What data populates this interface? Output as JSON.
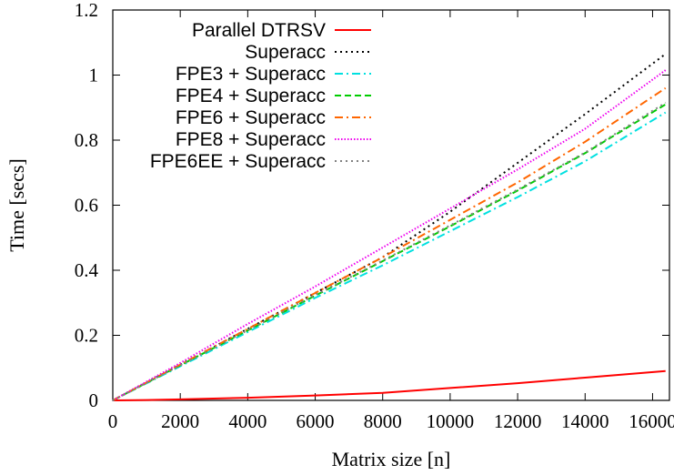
{
  "chart_data": {
    "type": "line",
    "xlabel": "Matrix size [n]",
    "ylabel": "Time [secs]",
    "xlim": [
      0,
      16500
    ],
    "ylim": [
      0,
      1.2
    ],
    "xticks": [
      0,
      2000,
      4000,
      6000,
      8000,
      10000,
      12000,
      14000,
      16000
    ],
    "yticks": [
      0,
      0.2,
      0.4,
      0.6,
      0.8,
      1,
      1.2
    ],
    "xtick_labels": [
      "0",
      "2000",
      "4000",
      "6000",
      "8000",
      "10000",
      "12000",
      "14000",
      "16000"
    ],
    "ytick_labels": [
      "0",
      "0.2",
      "0.4",
      "0.6",
      "0.8",
      "1",
      "1.2"
    ],
    "legend_position": "top-left",
    "grid": false,
    "series": [
      {
        "name": "Parallel DTRSV",
        "color": "#ff0000",
        "dash": "solid",
        "x": [
          0,
          1000,
          2000,
          4000,
          6000,
          8000,
          10000,
          12000,
          14000,
          16384
        ],
        "y": [
          0,
          0.001,
          0.003,
          0.008,
          0.015,
          0.023,
          0.038,
          0.053,
          0.07,
          0.09
        ]
      },
      {
        "name": "Superacc",
        "color": "#000000",
        "dash": "dot",
        "x": [
          0,
          2000,
          4000,
          6000,
          8000,
          10000,
          12000,
          14000,
          16384
        ],
        "y": [
          0,
          0.11,
          0.22,
          0.33,
          0.44,
          0.58,
          0.73,
          0.88,
          1.065
        ]
      },
      {
        "name": "FPE3 + Superacc",
        "color": "#00e0e0",
        "dash": "dashdot",
        "x": [
          0,
          2000,
          4000,
          6000,
          8000,
          10000,
          12000,
          14000,
          16384
        ],
        "y": [
          0,
          0.105,
          0.21,
          0.315,
          0.415,
          0.52,
          0.625,
          0.735,
          0.885
        ]
      },
      {
        "name": "FPE4 + Superacc",
        "color": "#00cc00",
        "dash": "dash",
        "x": [
          0,
          2000,
          4000,
          6000,
          8000,
          10000,
          12000,
          14000,
          16384
        ],
        "y": [
          0,
          0.108,
          0.215,
          0.322,
          0.428,
          0.535,
          0.645,
          0.76,
          0.91
        ]
      },
      {
        "name": "FPE6 + Superacc",
        "color": "#ff6600",
        "dash": "dashdot",
        "x": [
          0,
          2000,
          4000,
          6000,
          8000,
          10000,
          12000,
          14000,
          16384
        ],
        "y": [
          0,
          0.11,
          0.22,
          0.33,
          0.44,
          0.555,
          0.67,
          0.795,
          0.96
        ]
      },
      {
        "name": "FPE8 + Superacc",
        "color": "#ee00ee",
        "dash": "fine-dot",
        "x": [
          0,
          2000,
          4000,
          6000,
          8000,
          10000,
          12000,
          14000,
          16384
        ],
        "y": [
          0,
          0.115,
          0.235,
          0.35,
          0.47,
          0.59,
          0.71,
          0.835,
          1.015
        ]
      },
      {
        "name": "FPE6EE + Superacc",
        "color": "#808080",
        "dash": "dot",
        "x": [
          0,
          2000,
          4000,
          6000,
          8000,
          10000,
          12000,
          14000,
          16384
        ],
        "y": [
          0,
          0.108,
          0.216,
          0.324,
          0.43,
          0.538,
          0.648,
          0.762,
          0.915
        ]
      }
    ]
  }
}
